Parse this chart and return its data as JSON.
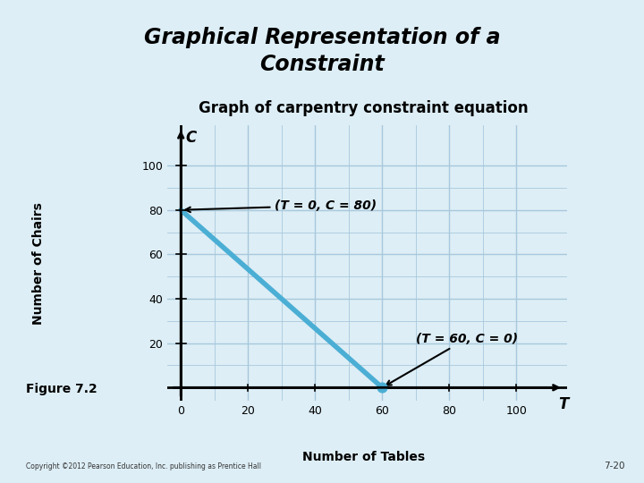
{
  "title_box_text": "Graphical Representation of a\nConstraint",
  "subtitle": "Graph of carpentry constraint equation",
  "xlabel": "Number of Tables",
  "ylabel": "Number of Chairs",
  "xaxis_label": "T",
  "yaxis_label": "C",
  "line_x": [
    0,
    60
  ],
  "line_y": [
    80,
    0
  ],
  "line_color": "#4baed4",
  "line_width": 4,
  "point1": [
    0,
    80
  ],
  "point2": [
    60,
    0
  ],
  "point1_label": "(T = 0, C = 80)",
  "point2_label": "(T = 60, C = 0)",
  "xlim": [
    -4,
    115
  ],
  "ylim": [
    -6,
    118
  ],
  "xticks": [
    0,
    20,
    40,
    60,
    80,
    100
  ],
  "yticks": [
    20,
    40,
    60,
    80,
    100
  ],
  "grid_color": "#a8c8dc",
  "background_color": "#ddeef6",
  "title_box_color": "#6db8d4",
  "figure_bg": "#ddeef6",
  "fig72_text": "Figure 7.2",
  "copyright_text": "Copyright ©2012 Pearson Education, Inc. publishing as Prentice Hall",
  "page_num": "7-20",
  "point_color": "#4baed4",
  "point_size": 60,
  "annotation_fontsize": 10,
  "subtitle_fontsize": 12,
  "title_fontsize": 17,
  "tick_fontsize": 9
}
